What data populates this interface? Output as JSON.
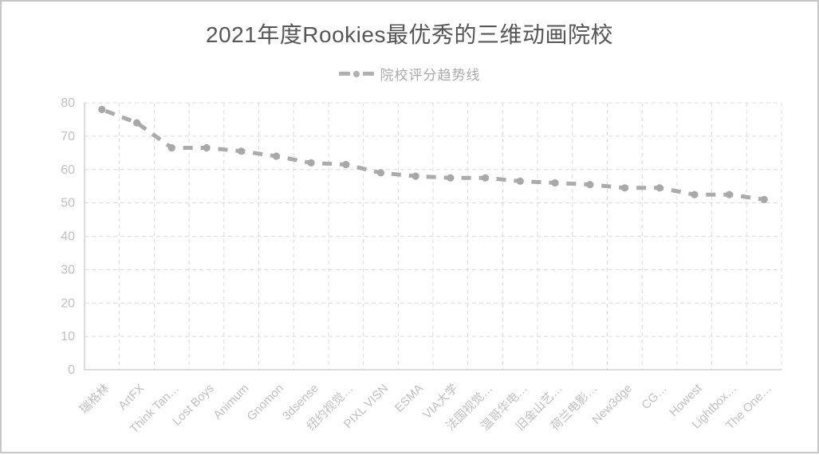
{
  "page": {
    "title": "2021年度Rookies最优秀的三维动画院校"
  },
  "legend": {
    "label": "院校评分趋势线"
  },
  "chart_data": {
    "type": "line",
    "title": "2021年度Rookies最优秀的三维动画院校",
    "legend_entries": [
      "院校评分趋势线"
    ],
    "legend_position": "top",
    "categories": [
      "瑞格林",
      "ArtFX",
      "Think Tan…",
      "Lost Boys",
      "Animum",
      "Gnomon",
      "3dsense",
      "纽约视觉…",
      "PIXL VISN",
      "ESMA",
      "VIA大学",
      "法国视觉…",
      "温哥华电…",
      "旧金山艺…",
      "荷兰电影…",
      "New3dge",
      "CG…",
      "Howest",
      "Lightbox…",
      "The One…"
    ],
    "series": [
      {
        "name": "院校评分趋势线",
        "values": [
          78,
          74,
          66.5,
          66.5,
          65.5,
          64,
          62,
          61.5,
          59,
          58,
          57.5,
          57.5,
          56.5,
          56,
          55.5,
          54.5,
          54.5,
          52.5,
          52.5,
          51
        ]
      }
    ],
    "xlabel": "",
    "ylabel": "",
    "ylim": [
      0,
      80
    ],
    "ytick_step": 10,
    "yticks": [
      0,
      10,
      20,
      30,
      40,
      50,
      60,
      70,
      80
    ],
    "grid": true,
    "line_style": "dashed",
    "marker": "circle",
    "colors": {
      "line": "#ababab",
      "marker": "#a8a8a8",
      "gridline": "#dcdcdc",
      "axis": "#d2d2d2",
      "tick_label": "#c0c0c0",
      "title": "#565656",
      "legend_text": "#a9a9a9",
      "border": "#c6c6c6"
    }
  }
}
